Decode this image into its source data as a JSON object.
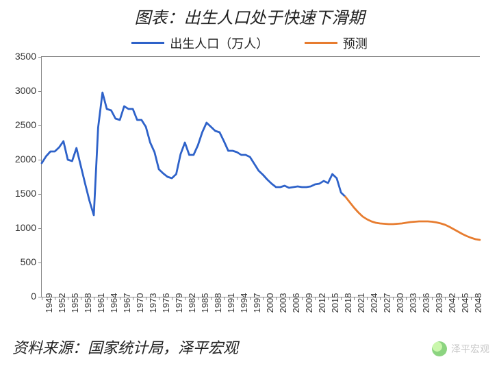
{
  "title": "图表：出生人口处于快速下滑期",
  "source": "资料来源：国家统计局，泽平宏观",
  "watermark": "泽平宏观",
  "legend": {
    "series1": "出生人口（万人）",
    "series2": "预测"
  },
  "chart": {
    "type": "line",
    "ylim": [
      0,
      3500
    ],
    "ytick_step": 500,
    "yticks": [
      0,
      500,
      1000,
      1500,
      2000,
      2500,
      3000,
      3500
    ],
    "xlim": [
      1949,
      2050
    ],
    "xticks": [
      1949,
      1952,
      1955,
      1958,
      1961,
      1964,
      1967,
      1970,
      1973,
      1976,
      1979,
      1982,
      1985,
      1988,
      1991,
      1994,
      1997,
      2000,
      2003,
      2006,
      2009,
      2012,
      2015,
      2018,
      2021,
      2024,
      2027,
      2030,
      2033,
      2036,
      2039,
      2042,
      2045,
      2048
    ],
    "background_color": "#ffffff",
    "axis_color": "#888888",
    "tick_font_size": 13,
    "label_color": "#333333",
    "line_width": 2.8,
    "series_actual": {
      "name": "出生人口（万人）",
      "color": "#2e62c9",
      "years": [
        1949,
        1950,
        1951,
        1952,
        1953,
        1954,
        1955,
        1956,
        1957,
        1958,
        1959,
        1960,
        1961,
        1962,
        1963,
        1964,
        1965,
        1966,
        1967,
        1968,
        1969,
        1970,
        1971,
        1972,
        1973,
        1974,
        1975,
        1976,
        1977,
        1978,
        1979,
        1980,
        1981,
        1982,
        1983,
        1984,
        1985,
        1986,
        1987,
        1988,
        1989,
        1990,
        1991,
        1992,
        1993,
        1994,
        1995,
        1996,
        1997,
        1998,
        1999,
        2000,
        2001,
        2002,
        2003,
        2004,
        2005,
        2006,
        2007,
        2008,
        2009,
        2010,
        2011,
        2012,
        2013,
        2014,
        2015,
        2016,
        2017,
        2018,
        2019
      ],
      "values": [
        1950,
        2050,
        2120,
        2120,
        2180,
        2270,
        2000,
        1980,
        2170,
        1910,
        1650,
        1400,
        1190,
        2470,
        2980,
        2740,
        2720,
        2600,
        2580,
        2780,
        2740,
        2740,
        2580,
        2580,
        2480,
        2250,
        2110,
        1860,
        1800,
        1750,
        1730,
        1790,
        2080,
        2250,
        2070,
        2070,
        2210,
        2400,
        2540,
        2480,
        2420,
        2400,
        2270,
        2130,
        2130,
        2110,
        2070,
        2070,
        2040,
        1940,
        1840,
        1780,
        1710,
        1650,
        1600,
        1600,
        1620,
        1590,
        1600,
        1610,
        1600,
        1600,
        1610,
        1640,
        1650,
        1690,
        1660,
        1790,
        1730,
        1520,
        1460
      ]
    },
    "series_forecast": {
      "name": "预测",
      "color": "#e77c2f",
      "years": [
        2019,
        2020,
        2021,
        2022,
        2023,
        2024,
        2025,
        2026,
        2027,
        2028,
        2029,
        2030,
        2031,
        2032,
        2033,
        2034,
        2035,
        2036,
        2037,
        2038,
        2039,
        2040,
        2041,
        2042,
        2043,
        2044,
        2045,
        2046,
        2047,
        2048,
        2049,
        2050
      ],
      "values": [
        1460,
        1380,
        1300,
        1230,
        1170,
        1130,
        1100,
        1080,
        1070,
        1065,
        1060,
        1060,
        1065,
        1070,
        1080,
        1090,
        1095,
        1100,
        1100,
        1100,
        1095,
        1085,
        1070,
        1050,
        1020,
        985,
        950,
        915,
        885,
        860,
        840,
        830
      ]
    }
  }
}
